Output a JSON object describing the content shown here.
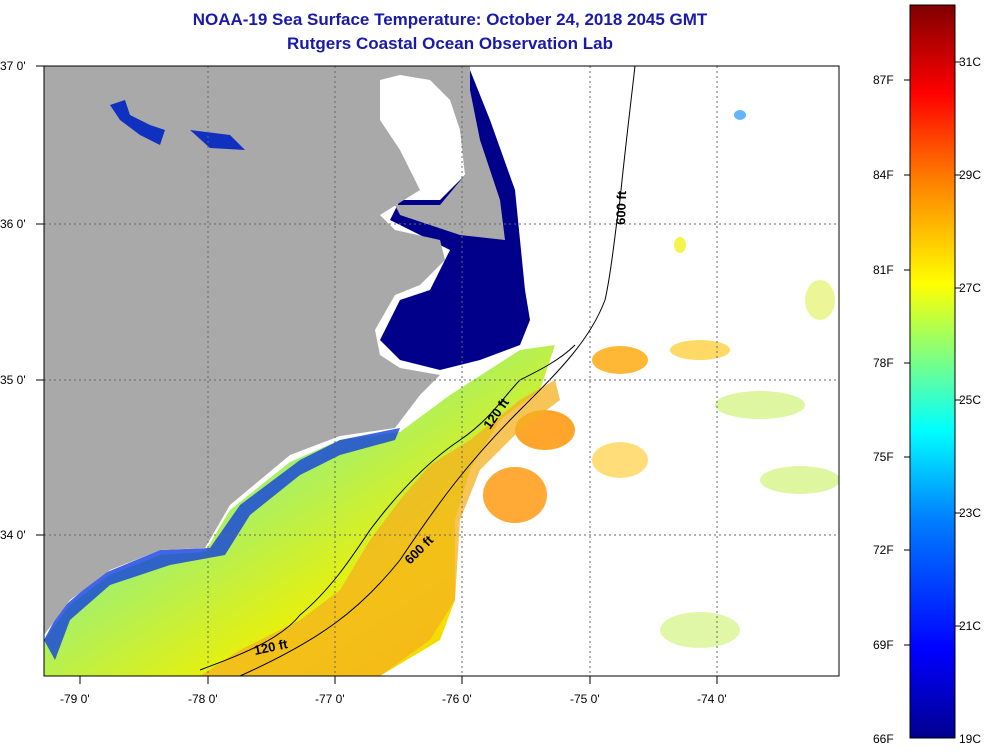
{
  "title_line1": "NOAA-19 Sea Surface Temperature:  October 24, 2018 2045 GMT",
  "title_line2": "Rutgers Coastal Ocean Observation Lab",
  "latitude_labels": [
    "37 0'",
    "36 0'",
    "35 0'",
    "34 0'"
  ],
  "longitude_labels": [
    "-79 0'",
    "-78 0'",
    "-77 0'",
    "-76 0'",
    "-75 0'",
    "-74 0'"
  ],
  "depth_contours": [
    "600 ft",
    "120 ft",
    "600 ft",
    "120 ft"
  ],
  "colorbar": {
    "fahrenheit_labels": [
      "87F",
      "84F",
      "81F",
      "78F",
      "75F",
      "72F",
      "69F",
      "66F"
    ],
    "celsius_labels": [
      "31C",
      "29C",
      "27C",
      "25C",
      "23C",
      "21C",
      "19C"
    ],
    "range_celsius": [
      19,
      32
    ],
    "colors": [
      "#00008f",
      "#0000ff",
      "#0080ff",
      "#00ffff",
      "#80ff80",
      "#ffff00",
      "#ff8000",
      "#ff0000",
      "#800000"
    ]
  },
  "colors": {
    "land": "#a9a9a9",
    "estuary": "#00008b",
    "title": "#1a1aa8",
    "grid": "#666666"
  }
}
